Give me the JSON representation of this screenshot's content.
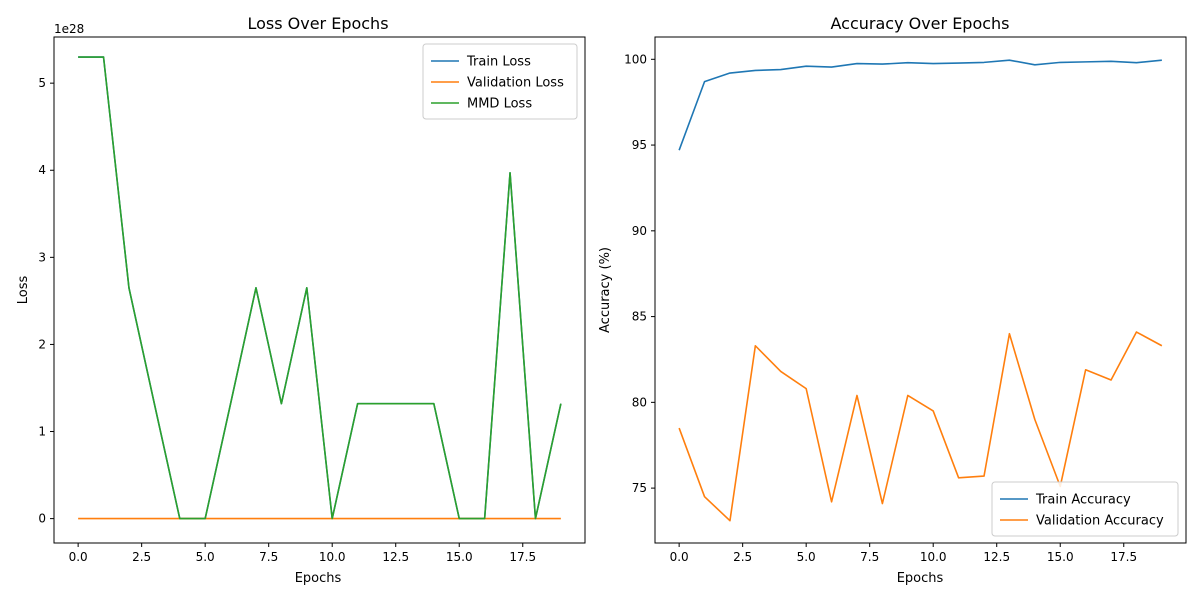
{
  "chart_data": [
    {
      "type": "line",
      "title": "Loss Over Epochs",
      "xlabel": "Epochs",
      "ylabel": "Loss",
      "offset_text": "1e28",
      "x": [
        0,
        1,
        2,
        3,
        4,
        5,
        6,
        7,
        8,
        9,
        10,
        11,
        12,
        13,
        14,
        15,
        16,
        17,
        18,
        19
      ],
      "xlim": [
        -0.95,
        19.95
      ],
      "ylim": [
        -0.28,
        5.53
      ],
      "xticks": [
        0,
        2.5,
        5,
        7.5,
        10,
        12.5,
        15,
        17.5
      ],
      "xtick_labels": [
        "0.0",
        "2.5",
        "5.0",
        "7.5",
        "10.0",
        "12.5",
        "15.0",
        "17.5"
      ],
      "yticks": [
        0,
        1,
        2,
        3,
        4,
        5
      ],
      "ytick_labels": [
        "0",
        "1",
        "2",
        "3",
        "4",
        "5"
      ],
      "grid": false,
      "legend_position": "top-right",
      "series": [
        {
          "name": "Train Loss",
          "color": "#1f77b4",
          "values": [
            5.3,
            5.3,
            2.65,
            1.32,
            0,
            0,
            1.32,
            2.65,
            1.32,
            2.65,
            0,
            1.32,
            1.32,
            1.32,
            1.32,
            0,
            0,
            3.97,
            0,
            1.32
          ]
        },
        {
          "name": "Validation Loss",
          "color": "#ff7f0e",
          "values": [
            0,
            0,
            0,
            0,
            0,
            0,
            0,
            0,
            0,
            0,
            0,
            0,
            0,
            0,
            0,
            0,
            0,
            0,
            0,
            0
          ]
        },
        {
          "name": "MMD Loss",
          "color": "#2ca02c",
          "values": [
            5.3,
            5.3,
            2.65,
            1.32,
            0,
            0,
            1.32,
            2.65,
            1.32,
            2.65,
            0,
            1.32,
            1.32,
            1.32,
            1.32,
            0,
            0,
            3.97,
            0,
            1.32
          ]
        }
      ]
    },
    {
      "type": "line",
      "title": "Accuracy Over Epochs",
      "xlabel": "Epochs",
      "ylabel": "Accuracy (%)",
      "x": [
        0,
        1,
        2,
        3,
        4,
        5,
        6,
        7,
        8,
        9,
        10,
        11,
        12,
        13,
        14,
        15,
        16,
        17,
        18,
        19
      ],
      "xlim": [
        -0.95,
        19.95
      ],
      "ylim": [
        71.8,
        101.3
      ],
      "xticks": [
        0,
        2.5,
        5,
        7.5,
        10,
        12.5,
        15,
        17.5
      ],
      "xtick_labels": [
        "0.0",
        "2.5",
        "5.0",
        "7.5",
        "10.0",
        "12.5",
        "15.0",
        "17.5"
      ],
      "yticks": [
        75,
        80,
        85,
        90,
        95,
        100
      ],
      "ytick_labels": [
        "75",
        "80",
        "85",
        "90",
        "95",
        "100"
      ],
      "grid": false,
      "legend_position": "bottom-right",
      "series": [
        {
          "name": "Train Accuracy",
          "color": "#1f77b4",
          "values": [
            94.7,
            98.7,
            99.2,
            99.35,
            99.4,
            99.6,
            99.55,
            99.75,
            99.72,
            99.8,
            99.75,
            99.78,
            99.82,
            99.95,
            99.68,
            99.82,
            99.85,
            99.88,
            99.8,
            99.95
          ]
        },
        {
          "name": "Validation Accuracy",
          "color": "#ff7f0e",
          "values": [
            78.5,
            74.5,
            73.1,
            83.3,
            81.8,
            80.8,
            74.2,
            80.4,
            74.1,
            80.4,
            79.5,
            75.6,
            75.7,
            84.0,
            79.0,
            75.1,
            81.9,
            81.3,
            84.1,
            83.3
          ]
        }
      ]
    }
  ]
}
